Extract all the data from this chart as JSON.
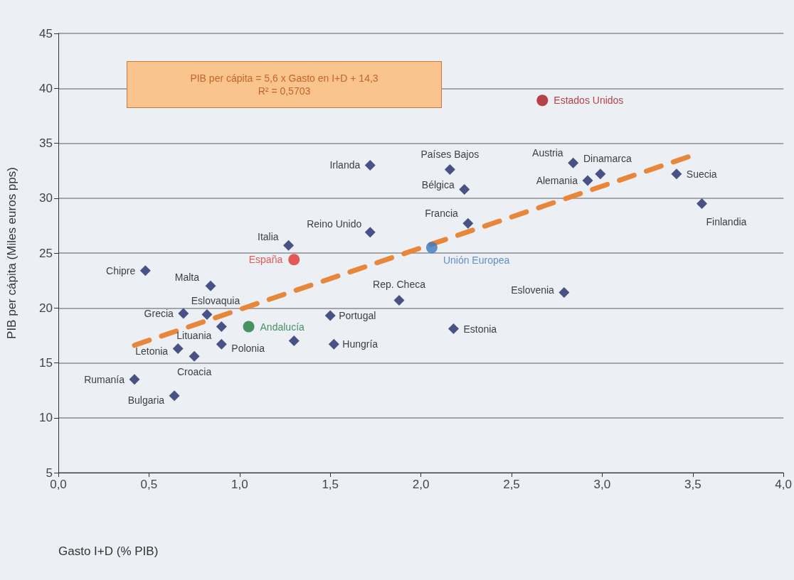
{
  "chart_data": {
    "type": "scatter",
    "ylabel": "PIB per cápita (Miles euros pps)",
    "xlabel": "Gasto I+D (% PIB)",
    "xlim": [
      0,
      4
    ],
    "xticks": [
      {
        "value": 0,
        "label": "0,0"
      },
      {
        "value": 0.5,
        "label": "0,5"
      },
      {
        "value": 1,
        "label": "1,0"
      },
      {
        "value": 1.5,
        "label": "1,5"
      },
      {
        "value": 2,
        "label": "2,0"
      },
      {
        "value": 2.5,
        "label": "2,5"
      },
      {
        "value": 3,
        "label": "3,0"
      },
      {
        "value": 3.5,
        "label": "3,5"
      },
      {
        "value": 4,
        "label": "4,0"
      }
    ],
    "ylim": [
      5,
      45
    ],
    "yticks": [
      5,
      10,
      15,
      20,
      25,
      30,
      35,
      40,
      45
    ],
    "grid": "y",
    "legend": false,
    "marker": "diamond",
    "series": [
      {
        "color": "#1f2a6b",
        "x": [
          0.42,
          0.64,
          0.66,
          0.75,
          0.69,
          0.82,
          0.9,
          0.9,
          0.84,
          0.48,
          1.27,
          1.72,
          1.72,
          1.5,
          1.52,
          1.88,
          2.18,
          2.16,
          2.24,
          2.26,
          2.84,
          2.92,
          2.99,
          3.41,
          3.55,
          2.79,
          1.3
        ],
        "values": [
          13.5,
          12.0,
          16.3,
          15.6,
          19.5,
          19.4,
          18.3,
          16.7,
          22.0,
          23.4,
          25.7,
          33.0,
          26.9,
          19.3,
          16.7,
          20.7,
          18.1,
          32.6,
          30.8,
          27.7,
          33.2,
          31.6,
          32.2,
          32.2,
          29.5,
          21.4,
          17.0
        ]
      },
      {
        "name": "España",
        "color": "#e0342a",
        "marker": "circle",
        "x": [
          1.3
        ],
        "values": [
          24.4
        ]
      },
      {
        "name": "Andalucía",
        "color": "#1e7b3c",
        "marker": "circle",
        "x": [
          1.05
        ],
        "values": [
          18.3
        ]
      },
      {
        "name": "Unión Europea",
        "color": "#3a78c2",
        "marker": "circle",
        "x": [
          2.06
        ],
        "values": [
          25.5
        ]
      },
      {
        "name": "Estados Unidos",
        "color": "#a8161c",
        "marker": "circle",
        "x": [
          2.67
        ],
        "values": [
          38.9
        ]
      },
      {
        "type": "line",
        "color": "#e8863a",
        "line_style": "dashed",
        "marker": "none",
        "x": [
          0.42,
          3.5
        ],
        "values": [
          16.6,
          33.9
        ]
      }
    ],
    "annotations": [
      {
        "text": "Rumanía",
        "x": 0.42,
        "y": 13.5
      },
      {
        "text": "Bulgaria",
        "x": 0.64,
        "y": 12.0
      },
      {
        "text": "Letonia",
        "x": 0.66,
        "y": 16.3
      },
      {
        "text": "Croacia",
        "x": 0.75,
        "y": 15.6
      },
      {
        "text": "Grecia",
        "x": 0.69,
        "y": 19.5
      },
      {
        "text": "Eslovaquia",
        "x": 0.82,
        "y": 19.4
      },
      {
        "text": "Lituania",
        "x": 0.9,
        "y": 18.3
      },
      {
        "text": "Polonia",
        "x": 0.9,
        "y": 16.7
      },
      {
        "text": "Malta",
        "x": 0.84,
        "y": 22.0
      },
      {
        "text": "Chipre",
        "x": 0.48,
        "y": 23.4
      },
      {
        "text": "Italia",
        "x": 1.27,
        "y": 25.7
      },
      {
        "text": "Irlanda",
        "x": 1.72,
        "y": 33.0
      },
      {
        "text": "Reino Unido",
        "x": 1.72,
        "y": 26.9
      },
      {
        "text": "Portugal",
        "x": 1.5,
        "y": 19.3
      },
      {
        "text": "Hungría",
        "x": 1.52,
        "y": 16.7
      },
      {
        "text": "Rep. Checa",
        "x": 1.88,
        "y": 20.7
      },
      {
        "text": "Estonia",
        "x": 2.18,
        "y": 18.1
      },
      {
        "text": "Países Bajos",
        "x": 2.16,
        "y": 32.6
      },
      {
        "text": "Bélgica",
        "x": 2.24,
        "y": 30.8
      },
      {
        "text": "Francia",
        "x": 2.26,
        "y": 27.7
      },
      {
        "text": "Austria",
        "x": 2.84,
        "y": 33.2
      },
      {
        "text": "Alemania",
        "x": 2.92,
        "y": 31.6
      },
      {
        "text": "Dinamarca",
        "x": 2.99,
        "y": 32.2
      },
      {
        "text": "Suecia",
        "x": 3.41,
        "y": 32.2
      },
      {
        "text": "Finlandia",
        "x": 3.55,
        "y": 29.5
      },
      {
        "text": "Eslovenia",
        "x": 2.79,
        "y": 21.4
      },
      "PIB per cápita = 5,6 x Gasto en I+D  + 14,3\nR² = 0,5703"
    ]
  }
}
